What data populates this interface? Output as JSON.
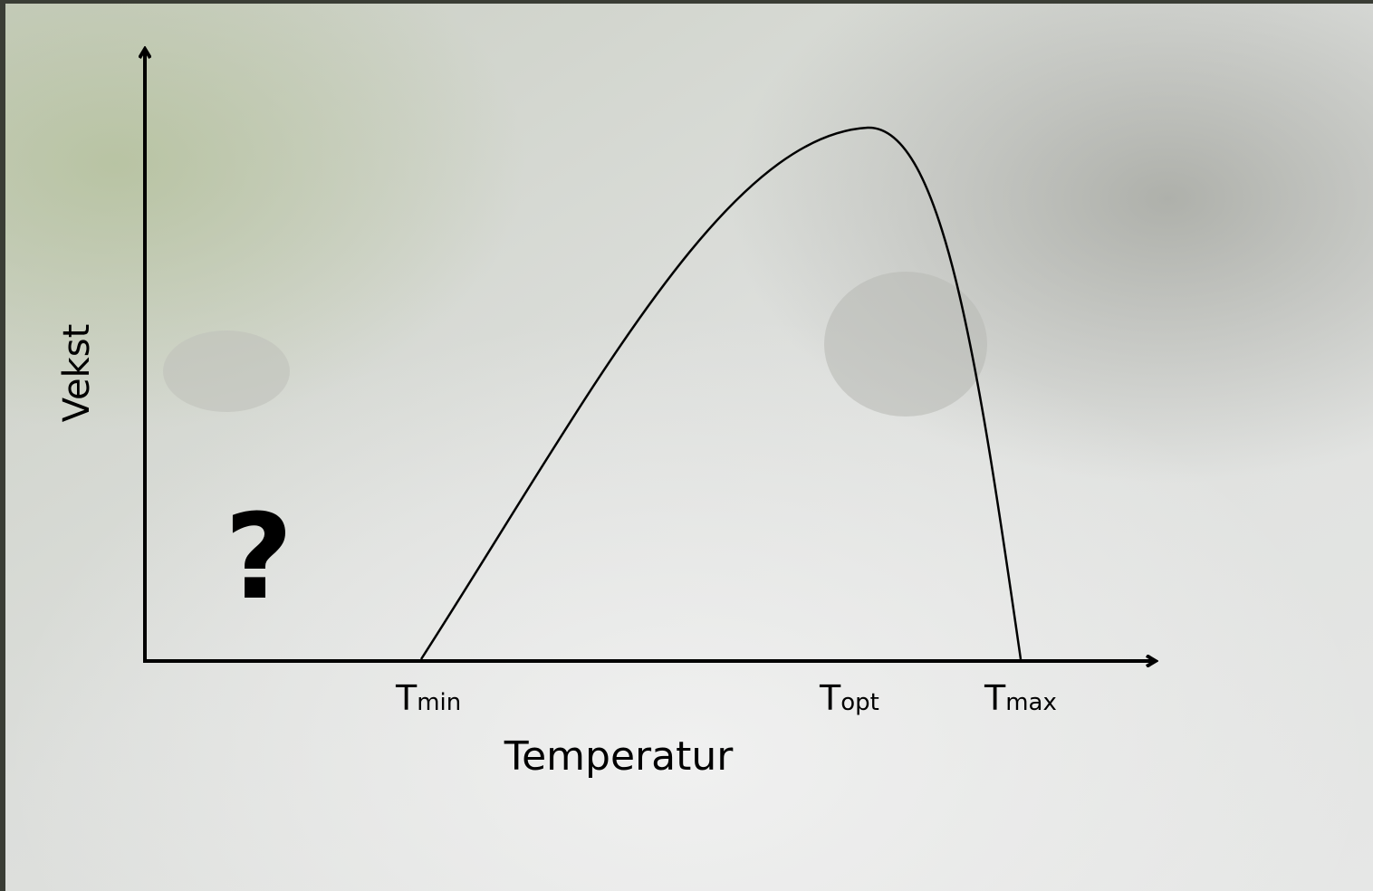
{
  "axes": {
    "y_label": "Vekst",
    "x_label": "Temperatur"
  },
  "points": [
    {
      "symbol": "T",
      "subscript": "min"
    },
    {
      "symbol": "T",
      "subscript": "opt"
    },
    {
      "symbol": "T",
      "subscript": "max"
    }
  ],
  "question": "?"
}
